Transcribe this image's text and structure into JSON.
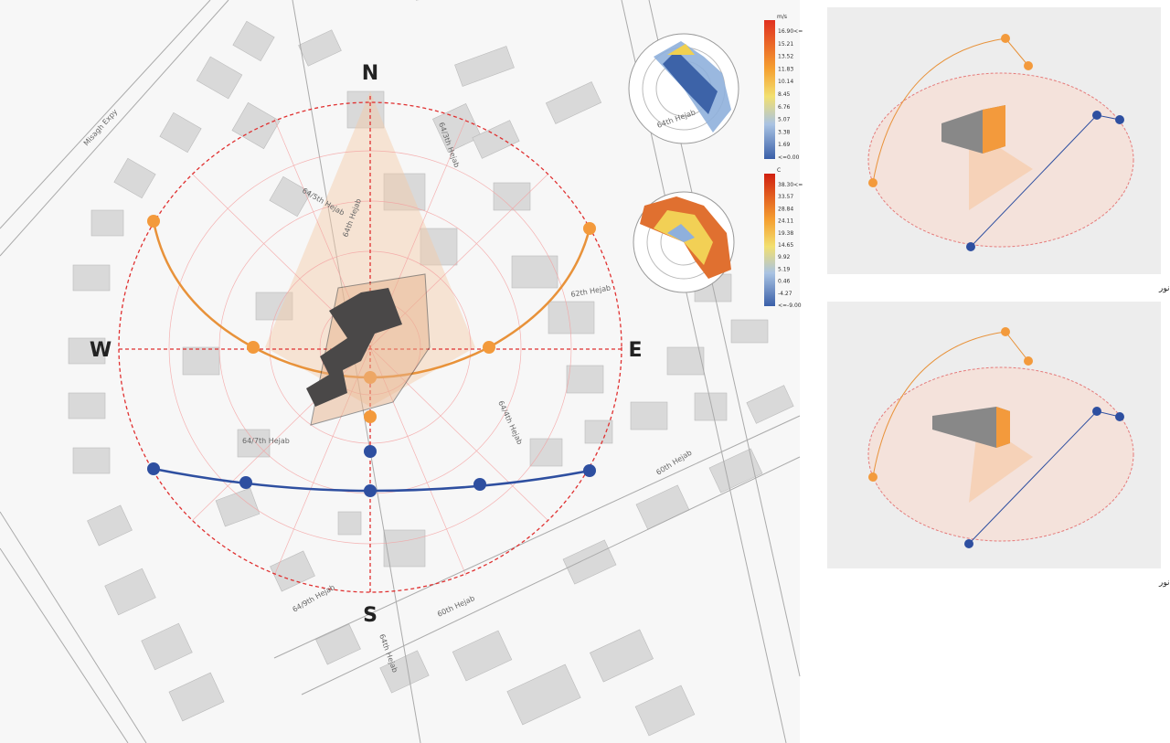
{
  "site_plan": {
    "compass": {
      "north": "N",
      "south": "S",
      "west": "W",
      "east": "E"
    },
    "streets": [
      "Misagh Expy",
      "64/5th Hejab",
      "64/3th Hejab",
      "64th Hejab",
      "62th Hejab",
      "64/4th Hejab",
      "64/7th Hejab",
      "60th Hejab",
      "60th Hejab",
      "64/9th Hejab",
      "64th Hejab"
    ]
  },
  "wind_rose": {
    "street": "64th Hejab",
    "unit": "m/s",
    "legend": [
      "16.90<=",
      "15.21",
      "13.52",
      "11.83",
      "10.14",
      "8.45",
      "6.76",
      "5.07",
      "3.38",
      "1.69",
      "<=0.00"
    ]
  },
  "temperature_rose": {
    "unit": "C",
    "legend": [
      "38.30<=",
      "33.57",
      "28.84",
      "24.11",
      "19.38",
      "14.65",
      "9.92",
      "5.19",
      "0.46",
      "-4.27",
      "<=-9.00"
    ]
  },
  "panels": [
    {
      "caption": "جهت گیری مناسب بر اساس تابش و نور"
    },
    {
      "caption": "جهت گیری نا مناسب بر اساس تابش و نور"
    }
  ]
}
